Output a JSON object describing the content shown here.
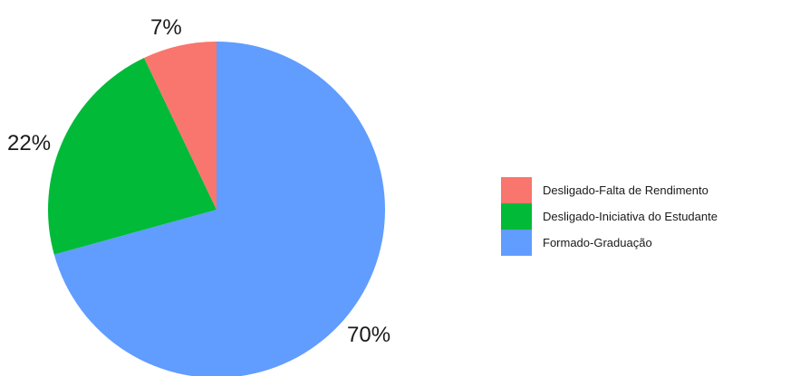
{
  "chart_data": {
    "type": "pie",
    "title": "",
    "start_angle_deg": 0,
    "direction": "clockwise",
    "slices": [
      {
        "label": "Formado-Graduação",
        "value": 70,
        "display": "70%",
        "color": "#619CFF"
      },
      {
        "label": "Desligado-Iniciativa do Estudante",
        "value": 22,
        "display": "22%",
        "color": "#00BA38"
      },
      {
        "label": "Desligado-Falta de Rendimento",
        "value": 7,
        "display": "7%",
        "color": "#F8766D"
      }
    ],
    "legend": {
      "position": "right",
      "entries": [
        {
          "label": "Desligado-Falta de Rendimento",
          "color": "#F8766D"
        },
        {
          "label": "Desligado-Iniciativa do Estudante",
          "color": "#00BA38"
        },
        {
          "label": "Formado-Graduação",
          "color": "#619CFF"
        }
      ]
    }
  }
}
